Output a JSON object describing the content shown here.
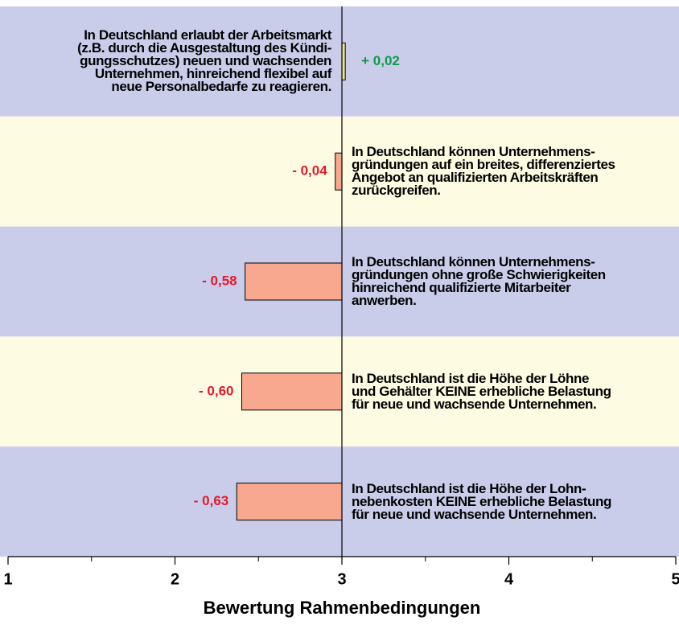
{
  "chart_data": {
    "type": "diverging-bar",
    "x_label": "Bewertung Rahmenbedingungen",
    "categories": [
      "In Deutschland erlaubt der Arbeitsmarkt\n(z.B. durch die Ausgestaltung des Kündi-\ngungsschutzes) neuen und wachsenden\nUnternehmen, hinreichend flexibel auf\nneue Personalbedarfe zu reagieren.",
      "In Deutschland können Unternehmens-\ngründungen auf ein breites, differenziertes\nAngebot an qualifizierten Arbeitskräften\nzurückgreifen.",
      "In Deutschland können Unternehmens-\ngründungen ohne große Schwierigkeiten\nhinreichend qualifizierte Mitarbeiter\nanwerben.",
      "In Deutschland ist die Höhe der Löhne\nund Gehälter KEINE erhebliche Belastung\nfür neue und wachsende Unternehmen.",
      "In Deutschland ist die Höhe der Lohn-\nnebenkosten KEINE erhebliche Belastung\nfür neue und wachsende Unternehmen."
    ],
    "values": [
      0.02,
      -0.04,
      -0.58,
      -0.6,
      -0.63
    ],
    "value_labels": [
      "+ 0,02",
      "- 0,04",
      "- 0,58",
      "- 0,60",
      "- 0,63"
    ],
    "positive_color": "#e6e68c",
    "negative_color": "#f7a88e",
    "positive_label_color": "#109a48",
    "negative_label_color": "#e5192b",
    "band_colors": [
      "#c9cdea",
      "#fdfbe1"
    ],
    "xlim": [
      1,
      5
    ],
    "xticks": [
      1,
      2,
      3,
      4,
      5
    ],
    "minor_xticks": [
      1.5,
      2.5,
      3.5,
      4.5
    ]
  }
}
